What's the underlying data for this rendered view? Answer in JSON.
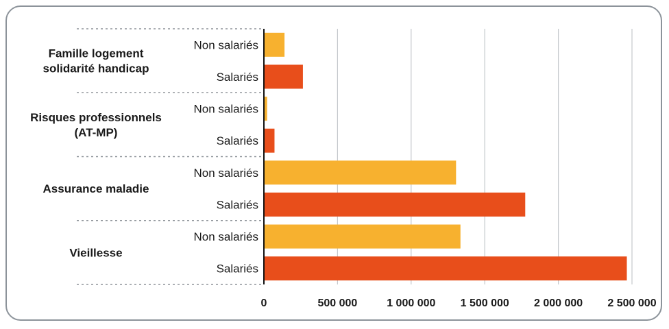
{
  "chart_data": {
    "type": "bar",
    "orientation": "horizontal",
    "title": "",
    "xlabel": "",
    "ylabel": "",
    "xlim": [
      0,
      2500000
    ],
    "x_ticks": [
      0,
      500000,
      1000000,
      1500000,
      2000000,
      2500000
    ],
    "x_tick_labels": [
      "0",
      "500 000",
      "1 000 000",
      "1 500 000",
      "2 000 000",
      "2 500 000"
    ],
    "grid": "vertical",
    "colors": {
      "Non salariés": "#f7b12f",
      "Salariés": "#e84e1b"
    },
    "groups": [
      {
        "label_lines": [
          "Famille logement",
          "solidarité handicap"
        ],
        "bars": [
          {
            "label": "Non salariés",
            "value": 140000
          },
          {
            "label": "Salariés",
            "value": 265000
          }
        ]
      },
      {
        "label_lines": [
          "Risques professionnels",
          "(AT-MP)"
        ],
        "bars": [
          {
            "label": "Non salariés",
            "value": 22000
          },
          {
            "label": "Salariés",
            "value": 72000
          }
        ]
      },
      {
        "label_lines": [
          "Assurance maladie"
        ],
        "bars": [
          {
            "label": "Non salariés",
            "value": 1305000
          },
          {
            "label": "Salariés",
            "value": 1775000
          }
        ]
      },
      {
        "label_lines": [
          "Vieillesse"
        ],
        "bars": [
          {
            "label": "Non salariés",
            "value": 1335000
          },
          {
            "label": "Salariés",
            "value": 2465000
          }
        ]
      }
    ]
  }
}
